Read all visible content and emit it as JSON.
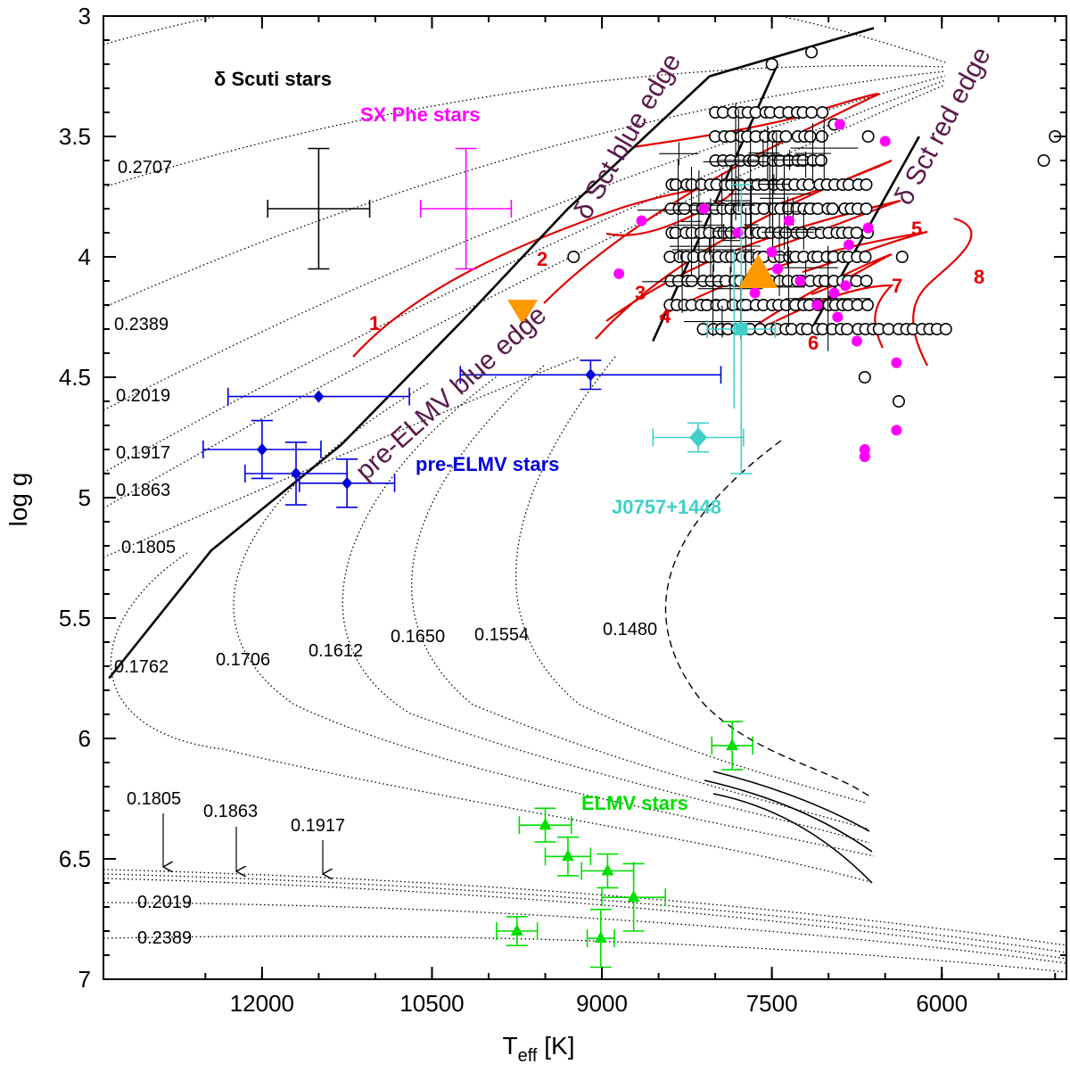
{
  "chart_data": {
    "type": "scatter",
    "xlabel": "T",
    "xlabel_sub": "eff",
    "xlabel_unit": " [K]",
    "ylabel": "log g",
    "xlim": [
      13400,
      4900
    ],
    "ylim": [
      3.0,
      7.0
    ],
    "x_ticks": [
      12000,
      10500,
      9000,
      7500,
      6000
    ],
    "x_tick_labels": [
      "12000",
      "10500",
      "9000",
      "7500",
      "6000"
    ],
    "y_ticks": [
      3,
      3.5,
      4,
      4.5,
      5,
      5.5,
      6,
      6.5,
      7
    ],
    "y_tick_labels": [
      "3",
      "3.5",
      "4",
      "4.5",
      "5",
      "5.5",
      "6",
      "6.5",
      "7"
    ],
    "colors": {
      "delta_scuti": "#000000",
      "sx_phe": "#ff00ff",
      "pre_elmv": "#0000dd",
      "elmv": "#00dd00",
      "j0757": "#40d0c8",
      "models": "#e00000",
      "edges": "#000000",
      "edge_text": "#5a1a4a",
      "orange": "#ff9900"
    },
    "group_labels": {
      "delta_scuti": "δ Scuti stars",
      "sx_phe": "SX Phe stars",
      "pre_elmv": "pre-ELMV stars",
      "elmv": "ELMV stars",
      "j0757": "J0757+1448"
    },
    "edge_labels": {
      "dsct_blue": "δ Sct blue edge",
      "dsct_red": "δ Sct red edge",
      "pre_elmv_blue": "pre-ELMV blue edge"
    },
    "track_labels": [
      "0.2707",
      "0.2389",
      "0.2019",
      "0.1917",
      "0.1863",
      "0.1805",
      "0.1762",
      "0.1706",
      "0.1612",
      "0.1650",
      "0.1554",
      "0.1480",
      "0.1805",
      "0.1863",
      "0.1917",
      "0.2019",
      "0.2389"
    ],
    "model_labels": [
      "1",
      "2",
      "3",
      "4",
      "5",
      "6",
      "7",
      "8"
    ],
    "edges": {
      "dsct_blue": [
        [
          8550,
          4.35
        ],
        [
          7450,
          3.2
        ]
      ],
      "dsct_red": [
        [
          7150,
          4.3
        ],
        [
          6200,
          3.5
        ]
      ],
      "pre_elmv_blue": [
        [
          13350,
          5.75
        ],
        [
          12450,
          5.22
        ],
        [
          11300,
          4.78
        ],
        [
          10200,
          4.25
        ],
        [
          9300,
          3.8
        ],
        [
          8050,
          3.25
        ],
        [
          6600,
          3.05
        ]
      ]
    },
    "pre_elmv_stars": [
      {
        "t": 11500,
        "g": 4.58,
        "te": 800,
        "ge": 0.0
      },
      {
        "t": 9100,
        "g": 4.49,
        "te": 1150,
        "ge": 0.06
      },
      {
        "t": 12000,
        "g": 4.8,
        "te": 520,
        "ge": 0.12
      },
      {
        "t": 11700,
        "g": 4.9,
        "te": 450,
        "ge": 0.13
      },
      {
        "t": 11250,
        "g": 4.94,
        "te": 420,
        "ge": 0.1
      }
    ],
    "elmv_stars": [
      {
        "t": 7850,
        "g": 6.03,
        "te": 180,
        "ge": 0.1
      },
      {
        "t": 9500,
        "g": 6.36,
        "te": 230,
        "ge": 0.07
      },
      {
        "t": 9300,
        "g": 6.49,
        "te": 200,
        "ge": 0.08
      },
      {
        "t": 8950,
        "g": 6.55,
        "te": 230,
        "ge": 0.07
      },
      {
        "t": 8720,
        "g": 6.66,
        "te": 280,
        "ge": 0.14
      },
      {
        "t": 9750,
        "g": 6.8,
        "te": 180,
        "ge": 0.06
      },
      {
        "t": 9010,
        "g": 6.83,
        "te": 120,
        "ge": 0.12
      }
    ],
    "j0757": {
      "diamond": {
        "t": 8150,
        "g": 4.75,
        "te": 400,
        "ge": 0.06
      },
      "square": {
        "t": 7770,
        "g": 4.3,
        "te": 300,
        "ge": 0.6
      }
    },
    "ref_errorbars": [
      {
        "t": 11500,
        "g": 3.8,
        "te": 450,
        "ge": 0.25,
        "group": "delta_scuti"
      },
      {
        "t": 10200,
        "g": 3.8,
        "te": 400,
        "ge": 0.25,
        "group": "sx_phe"
      }
    ],
    "sx_phe_stars": [
      [
        8650,
        3.85
      ],
      [
        8850,
        4.07
      ],
      [
        8100,
        3.8
      ],
      [
        7800,
        3.9
      ],
      [
        7500,
        3.98
      ],
      [
        7250,
        4.1
      ],
      [
        7100,
        4.2
      ],
      [
        6950,
        4.15
      ],
      [
        6850,
        4.12
      ],
      [
        6820,
        3.95
      ],
      [
        6650,
        3.88
      ],
      [
        6500,
        3.52
      ],
      [
        6900,
        3.45
      ],
      [
        7450,
        4.05
      ],
      [
        7650,
        4.15
      ],
      [
        6750,
        4.35
      ],
      [
        6920,
        4.25
      ],
      [
        6400,
        4.44
      ],
      [
        6400,
        4.72
      ],
      [
        6680,
        4.8
      ],
      [
        6680,
        4.83
      ],
      [
        7350,
        3.85
      ]
    ],
    "orange_triangles": [
      {
        "t": 9700,
        "g": 4.23,
        "dir": "down"
      },
      {
        "t": 7620,
        "g": 4.07,
        "dir": "up"
      }
    ]
  }
}
